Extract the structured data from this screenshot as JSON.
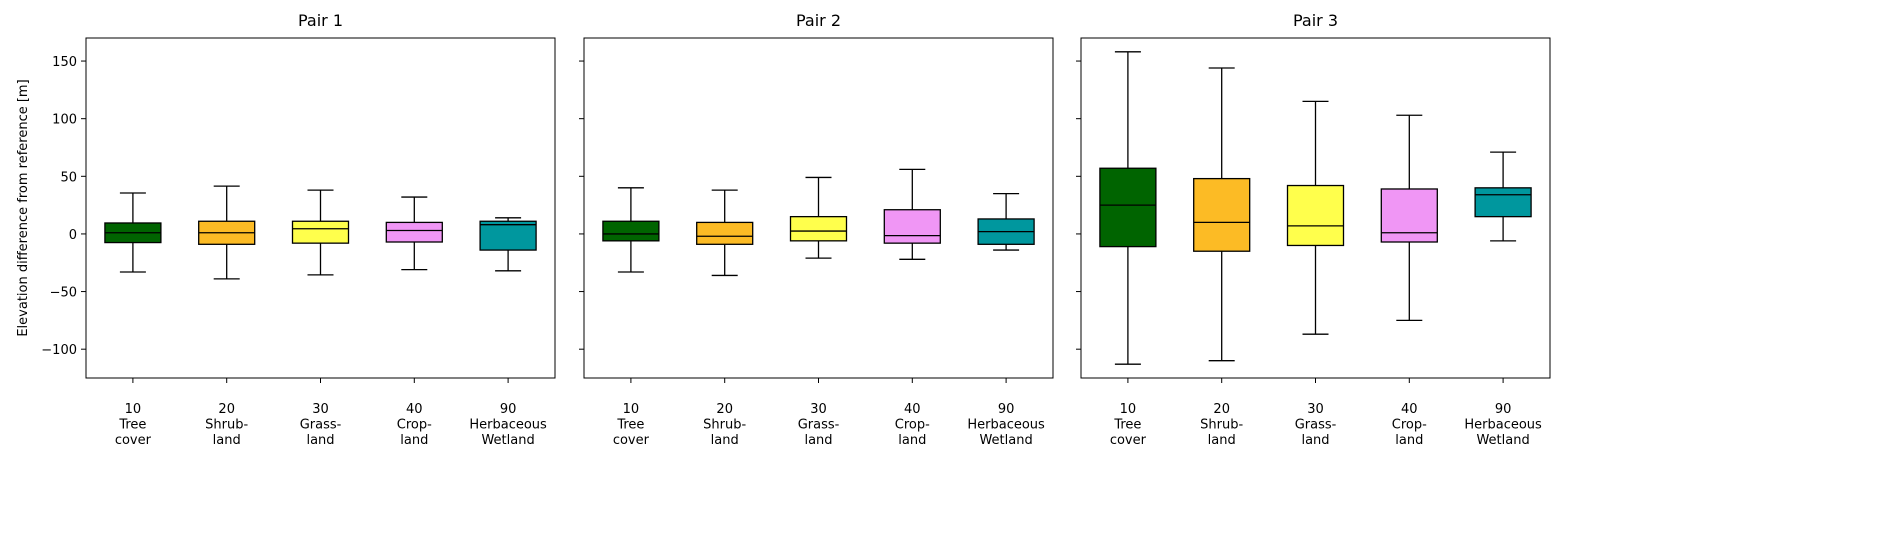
{
  "chart_data": {
    "type": "box",
    "ylabel": "Elevation difference from reference [m]",
    "ylim": [
      -125,
      170
    ],
    "yticks": [
      -100,
      -50,
      0,
      50,
      100,
      150
    ],
    "categories": [
      {
        "code": "10",
        "line1": "Tree",
        "line2": "cover",
        "color": "#006400"
      },
      {
        "code": "20",
        "line1": "Shrub-",
        "line2": "land",
        "color": "#fcbb25"
      },
      {
        "code": "30",
        "line1": "Grass-",
        "line2": "land",
        "color": "#ffff4c"
      },
      {
        "code": "40",
        "line1": "Crop-",
        "line2": "land",
        "color": "#f096f5"
      },
      {
        "code": "90",
        "line1": "Herbaceous",
        "line2": "Wetland",
        "color": "#00979e"
      }
    ],
    "panels": [
      {
        "title": "Pair 1",
        "boxes": [
          {
            "whislo": -33,
            "q1": -7.5,
            "med": 1,
            "q3": 9.5,
            "whishi": 35.5
          },
          {
            "whislo": -39,
            "q1": -9,
            "med": 1,
            "q3": 11,
            "whishi": 41.5
          },
          {
            "whislo": -35.5,
            "q1": -8,
            "med": 4.5,
            "q3": 11,
            "whishi": 38
          },
          {
            "whislo": -31,
            "q1": -7,
            "med": 3,
            "q3": 10,
            "whishi": 32
          },
          {
            "whislo": -32,
            "q1": -14,
            "med": 8,
            "q3": 11,
            "whishi": 14
          }
        ]
      },
      {
        "title": "Pair 2",
        "boxes": [
          {
            "whislo": -33,
            "q1": -6,
            "med": 0,
            "q3": 11,
            "whishi": 40
          },
          {
            "whislo": -36,
            "q1": -9,
            "med": -2,
            "q3": 10,
            "whishi": 38
          },
          {
            "whislo": -21,
            "q1": -6,
            "med": 2.5,
            "q3": 15,
            "whishi": 49
          },
          {
            "whislo": -22,
            "q1": -8,
            "med": -1.5,
            "q3": 21,
            "whishi": 56
          },
          {
            "whislo": -14,
            "q1": -9,
            "med": 2,
            "q3": 13,
            "whishi": 35
          }
        ]
      },
      {
        "title": "Pair 3",
        "boxes": [
          {
            "whislo": -113,
            "q1": -11,
            "med": 25,
            "q3": 57,
            "whishi": 158
          },
          {
            "whislo": -110,
            "q1": -15,
            "med": 10,
            "q3": 48,
            "whishi": 144
          },
          {
            "whislo": -87,
            "q1": -10,
            "med": 7,
            "q3": 42,
            "whishi": 115
          },
          {
            "whislo": -75,
            "q1": -7,
            "med": 1,
            "q3": 39,
            "whishi": 103
          },
          {
            "whislo": -6,
            "q1": 15,
            "med": 34,
            "q3": 40,
            "whishi": 71
          }
        ]
      }
    ]
  }
}
